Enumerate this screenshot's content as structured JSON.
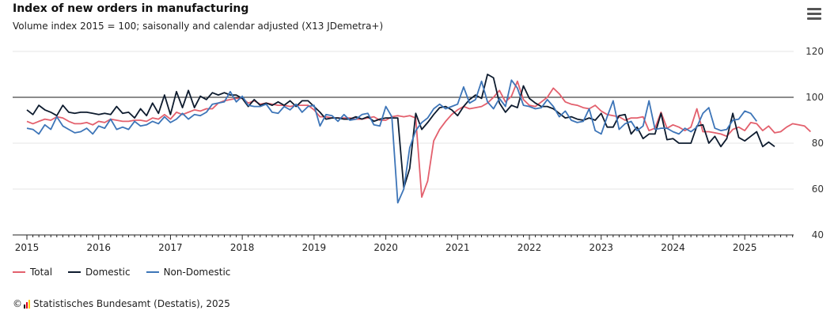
{
  "header": {
    "title": "Index of new orders in manufacturing",
    "subtitle": "Volume index 2015 = 100; saisonally and calendar adjusted (X13 JDemetra+)"
  },
  "menu_icon": "hamburger-menu-icon",
  "source": {
    "prefix": "©",
    "text": "Statistisches Bundesamt (Destatis), 2025",
    "logo_colors": [
      "#000000",
      "#e2001a",
      "#ffcc00"
    ]
  },
  "chart_data": {
    "type": "line",
    "title": "Index of new orders in manufacturing",
    "subtitle": "Volume index 2015 = 100; saisonally and calendar adjusted (X13 JDemetra+)",
    "xlabel": "",
    "ylabel": "",
    "x_start": "2015-01",
    "x_frequency": "monthly",
    "x_ticks": [
      "2015",
      "2016",
      "2017",
      "2018",
      "2019",
      "2020",
      "2021",
      "2022",
      "2023",
      "2024",
      "2025"
    ],
    "y_ticks": [
      40,
      60,
      80,
      100,
      120
    ],
    "ylim": [
      40,
      120
    ],
    "reference_line": 100,
    "grid": "horizontal",
    "legend_position": "bottom-left",
    "series": [
      {
        "name": "Total",
        "color": "#e3606d",
        "values": [
          89.5,
          88.5,
          89.5,
          90.5,
          90,
          91.5,
          91,
          89.5,
          88.5,
          88.5,
          89,
          88,
          89.5,
          89,
          90.5,
          90,
          89.5,
          89.5,
          90,
          90,
          89.5,
          91,
          90.5,
          92.5,
          90.5,
          93.5,
          92.5,
          93.5,
          94.5,
          94,
          95,
          95,
          97.5,
          98.5,
          99,
          99.5,
          99.5,
          97.5,
          98.5,
          97,
          97.5,
          97,
          96.5,
          96.5,
          96,
          96.5,
          96.5,
          96.5,
          94.5,
          91.5,
          91.5,
          91,
          91,
          91,
          91,
          90.5,
          90.5,
          91,
          91.5,
          90,
          90,
          91.5,
          92,
          91.5,
          92,
          91,
          56.5,
          63.5,
          81,
          86,
          89.5,
          92.5,
          94.5,
          96,
          95,
          95.5,
          96,
          97.5,
          100,
          103,
          98,
          100.5,
          107,
          99,
          96.5,
          96,
          98,
          100,
          104,
          101.5,
          98,
          97,
          96.5,
          95.5,
          95,
          96.5,
          94,
          92.5,
          92,
          91.5,
          90,
          91,
          91,
          91.5,
          85.5,
          86.5,
          93.5,
          86.5,
          88,
          87,
          85.5,
          87,
          95,
          85,
          85,
          84.5,
          84,
          83,
          86,
          87,
          85.5,
          89,
          88.5,
          85.5,
          87.5,
          84.5,
          85,
          87,
          88.5,
          88,
          87.5,
          85
        ]
      },
      {
        "name": "Domestic",
        "color": "#0d1b2e",
        "values": [
          94.5,
          92.5,
          96.5,
          94.5,
          93.5,
          92,
          96.5,
          93.5,
          93,
          93.5,
          93.5,
          93,
          92.5,
          93,
          92.5,
          96,
          93,
          93.5,
          91,
          95,
          92,
          97.5,
          93,
          101,
          92.5,
          102.5,
          95.5,
          103,
          95.5,
          100.5,
          99,
          102,
          101,
          102,
          101,
          101,
          99.5,
          96,
          99,
          96.5,
          97.5,
          96.5,
          98,
          96.5,
          98.5,
          96,
          98.5,
          98.5,
          96,
          93.5,
          90.5,
          91,
          91,
          90.5,
          90.5,
          91.5,
          90.5,
          91.5,
          89.5,
          90.5,
          91,
          91,
          91,
          60.5,
          69,
          93,
          86,
          89,
          92.5,
          95.5,
          96,
          94.5,
          92,
          96,
          99,
          101,
          99.5,
          110,
          108.5,
          97.5,
          93.5,
          96.5,
          95.5,
          105,
          99.5,
          97.5,
          96,
          96,
          95,
          93,
          91,
          91.5,
          90.5,
          90,
          91,
          90,
          93,
          87,
          87,
          92,
          92.5,
          84,
          87,
          82,
          84,
          84,
          93,
          81.5,
          82,
          80,
          80,
          80,
          87.5,
          88,
          80,
          83,
          78.5,
          82,
          93,
          82.5,
          81,
          83,
          85,
          78.5,
          80.5,
          78.5
        ]
      },
      {
        "name": "Non-Domestic",
        "color": "#3d75b8",
        "values": [
          86.5,
          86,
          84,
          88,
          86,
          91.5,
          87.5,
          86,
          84.5,
          85,
          86.5,
          84,
          87.5,
          86.5,
          90.5,
          86,
          87,
          86,
          89.5,
          87.5,
          88,
          89.5,
          88.5,
          91.5,
          89,
          90.5,
          93,
          90.5,
          92.5,
          92,
          93.5,
          97,
          97.5,
          98,
          102.5,
          98,
          100.5,
          96.5,
          96,
          96,
          97,
          93.5,
          93,
          96,
          94.5,
          97,
          93.5,
          96,
          96.5,
          87.5,
          92.5,
          92,
          89.5,
          92.5,
          90,
          90.5,
          92.5,
          93,
          88,
          87.5,
          96,
          91.5,
          54,
          60,
          78,
          85.5,
          89,
          91,
          95,
          97,
          95,
          96,
          97,
          104.5,
          97.5,
          99,
          107,
          98,
          95,
          99.5,
          96,
          107.5,
          104,
          96.5,
          96,
          95,
          95.5,
          99,
          96,
          91.5,
          94,
          90,
          89,
          89.5,
          95,
          85.5,
          84,
          91.5,
          98.5,
          86,
          88.5,
          89.5,
          85.5,
          87.5,
          98.5,
          86,
          86.5,
          86.5,
          85,
          84,
          86.5,
          85,
          87,
          93,
          95.5,
          86.5,
          85.5,
          86,
          90,
          90.5,
          94,
          93,
          89.5
        ]
      }
    ]
  }
}
